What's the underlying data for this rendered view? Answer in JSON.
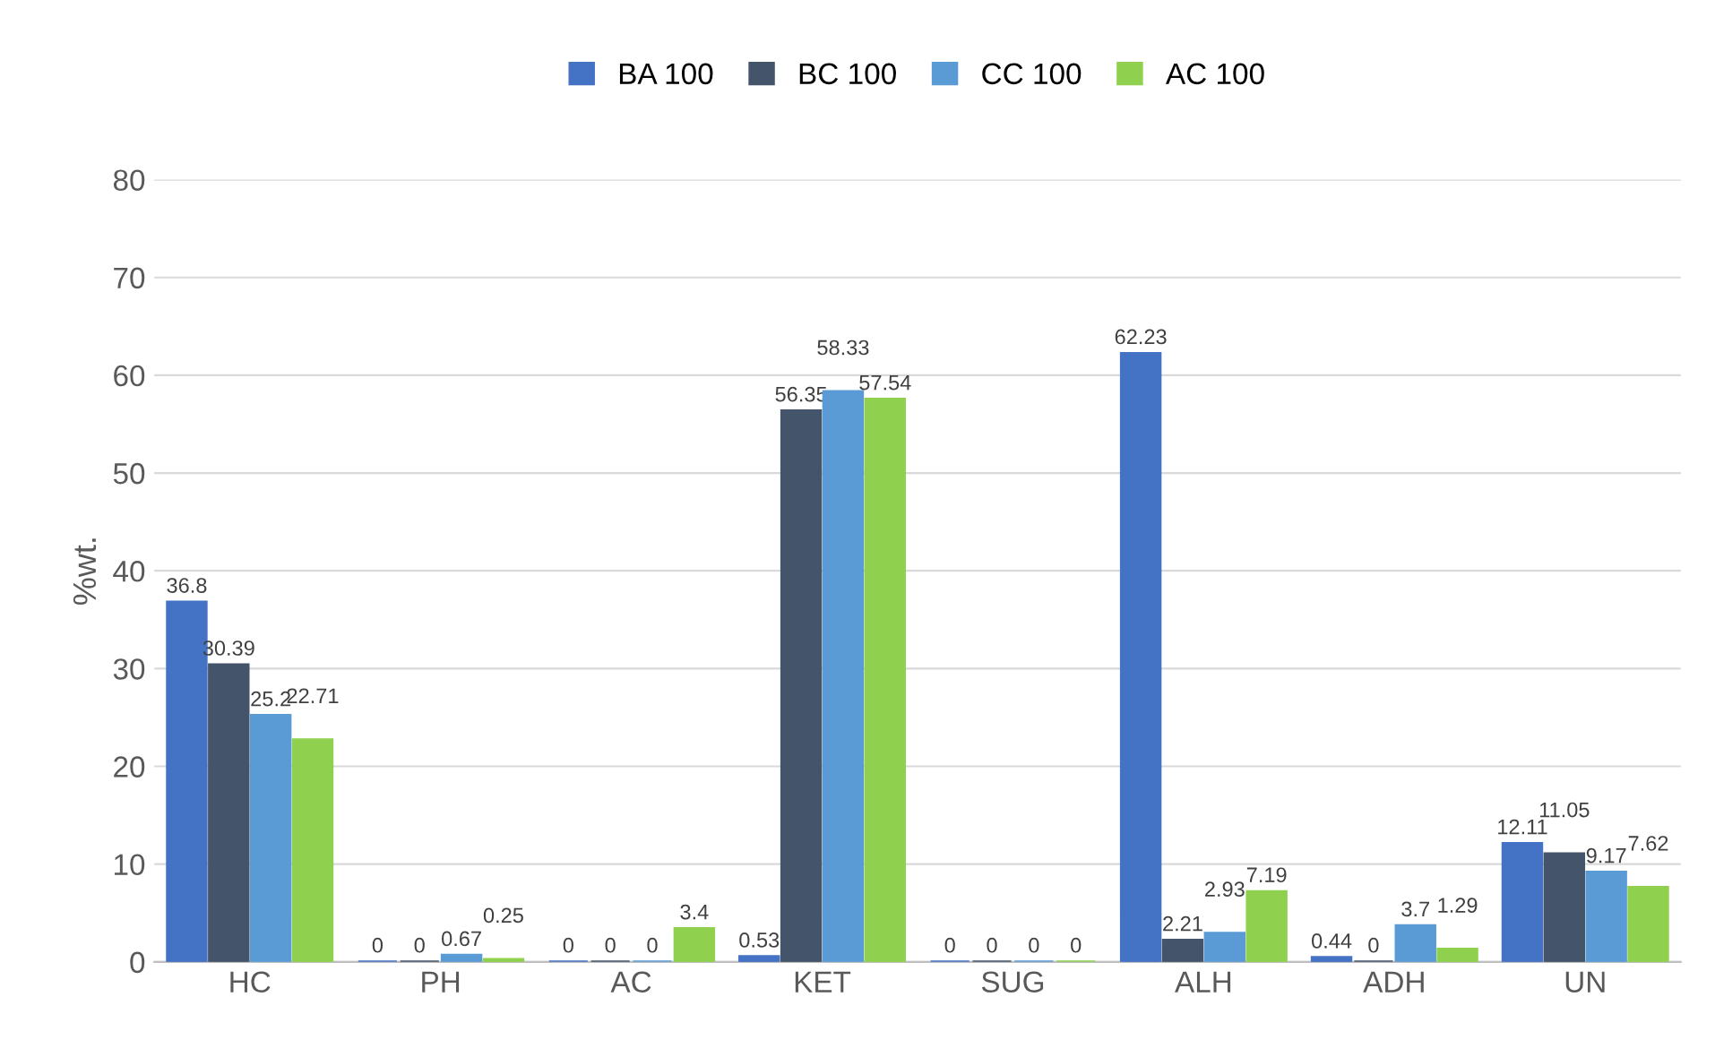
{
  "chart_data": {
    "type": "bar",
    "ylabel": "%wt.",
    "categories": [
      "HC",
      "PH",
      "AC",
      "KET",
      "SUG",
      "ALH",
      "ADH",
      "UN"
    ],
    "series": [
      {
        "name": "BA 100",
        "color": "#4472c4",
        "values": [
          36.8,
          0,
          0,
          0.53,
          0,
          62.23,
          0.44,
          12.11
        ]
      },
      {
        "name": "BC 100",
        "color": "#44546a",
        "values": [
          30.39,
          0,
          0,
          56.35,
          0,
          2.21,
          0,
          11.05
        ]
      },
      {
        "name": "CC 100",
        "color": "#5b9bd5",
        "values": [
          25.2,
          0.67,
          0,
          58.33,
          0,
          2.93,
          3.7,
          9.17
        ]
      },
      {
        "name": "AC 100",
        "color": "#8fd14f",
        "values": [
          22.71,
          0.25,
          3.4,
          57.54,
          0,
          7.19,
          1.29,
          7.62
        ]
      }
    ],
    "ylim": [
      0,
      80
    ],
    "yticks": [
      0,
      10,
      20,
      30,
      40,
      50,
      60,
      70,
      80
    ],
    "grid": "y",
    "legend": "top",
    "data_labels": true
  }
}
